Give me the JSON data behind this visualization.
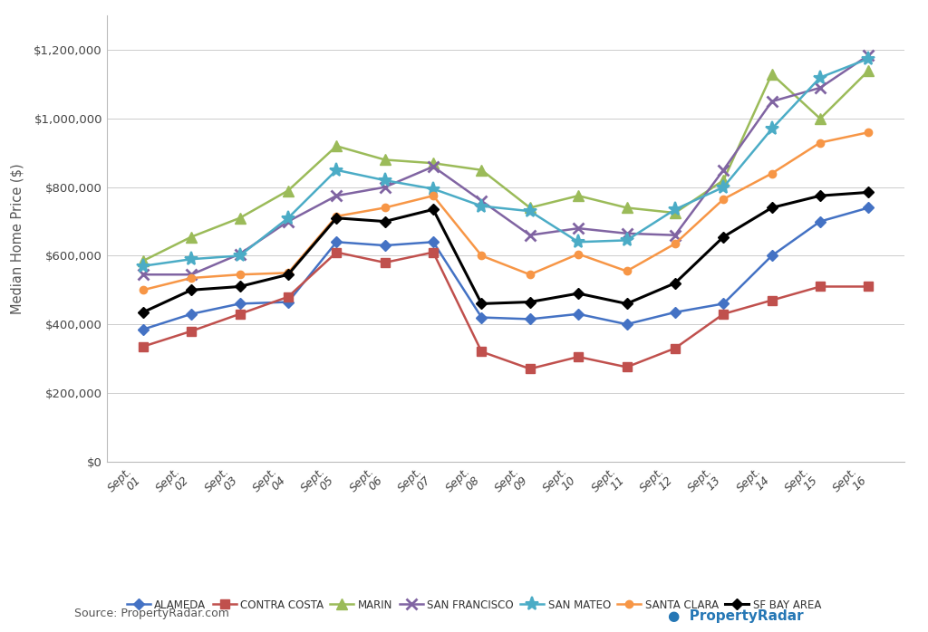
{
  "x_labels": [
    "Sept.\n01",
    "Sept.\n02",
    "Sept.\n03",
    "Sept.\n04",
    "Sept.\n05",
    "Sept.\n06",
    "Sept.\n07",
    "Sept.\n08",
    "Sept.\n09",
    "Sept.\n10",
    "Sept.\n11",
    "Sept.\n12",
    "Sept.\n13",
    "Sept.\n14",
    "Sept.\n15",
    "Sept.\n16"
  ],
  "series": {
    "ALAMEDA": {
      "color": "#4472C4",
      "values": [
        385000,
        430000,
        460000,
        465000,
        640000,
        630000,
        640000,
        420000,
        415000,
        430000,
        400000,
        435000,
        460000,
        600000,
        700000,
        740000
      ]
    },
    "CONTRA COSTA": {
      "color": "#C0504D",
      "values": [
        335000,
        380000,
        430000,
        480000,
        610000,
        580000,
        610000,
        320000,
        270000,
        305000,
        275000,
        330000,
        430000,
        470000,
        510000,
        510000
      ]
    },
    "MARIN": {
      "color": "#9BBB59",
      "values": [
        585000,
        655000,
        710000,
        790000,
        920000,
        880000,
        870000,
        850000,
        740000,
        775000,
        740000,
        725000,
        820000,
        1130000,
        1000000,
        1140000
      ]
    },
    "SAN FRANCISCO": {
      "color": "#8064A2",
      "values": [
        545000,
        545000,
        605000,
        700000,
        775000,
        800000,
        860000,
        760000,
        660000,
        680000,
        665000,
        660000,
        850000,
        1050000,
        1090000,
        1185000
      ]
    },
    "SAN MATEO": {
      "color": "#4BACC6",
      "values": [
        570000,
        590000,
        600000,
        710000,
        850000,
        820000,
        795000,
        745000,
        730000,
        640000,
        645000,
        735000,
        800000,
        970000,
        1120000,
        1175000
      ]
    },
    "SANTA CLARA": {
      "color": "#F79646",
      "values": [
        500000,
        535000,
        545000,
        550000,
        715000,
        740000,
        775000,
        600000,
        545000,
        605000,
        555000,
        635000,
        765000,
        840000,
        930000,
        960000
      ]
    },
    "SF BAY AREA": {
      "color": "#000000",
      "values": [
        435000,
        500000,
        510000,
        545000,
        710000,
        700000,
        735000,
        460000,
        465000,
        490000,
        460000,
        520000,
        655000,
        740000,
        775000,
        785000
      ]
    }
  },
  "ylabel": "Median Home Price ($)",
  "ylim": [
    0,
    1300000
  ],
  "yticks": [
    0,
    200000,
    400000,
    600000,
    800000,
    1000000,
    1200000
  ],
  "ytick_labels": [
    "$0",
    "$200,000",
    "$400,000",
    "$600,000",
    "$800,000",
    "$1,000,000",
    "$1,200,000"
  ],
  "source_text": "Source: PropertyRadar.com",
  "background_color": "#FFFFFF",
  "legend_order": [
    "ALAMEDA",
    "CONTRA COSTA",
    "MARIN",
    "SAN FRANCISCO",
    "SAN MATEO",
    "SANTA CLARA",
    "SF BAY AREA"
  ],
  "marker_types": {
    "ALAMEDA": "D",
    "CONTRA COSTA": "s",
    "MARIN": "^",
    "SAN FRANCISCO": "x",
    "SAN MATEO": "*",
    "SANTA CLARA": "o",
    "SF BAY AREA": "D"
  },
  "marker_sizes": {
    "ALAMEDA": 6,
    "CONTRA COSTA": 7,
    "MARIN": 8,
    "SAN FRANCISCO": 9,
    "SAN MATEO": 11,
    "SANTA CLARA": 6,
    "SF BAY AREA": 6
  }
}
